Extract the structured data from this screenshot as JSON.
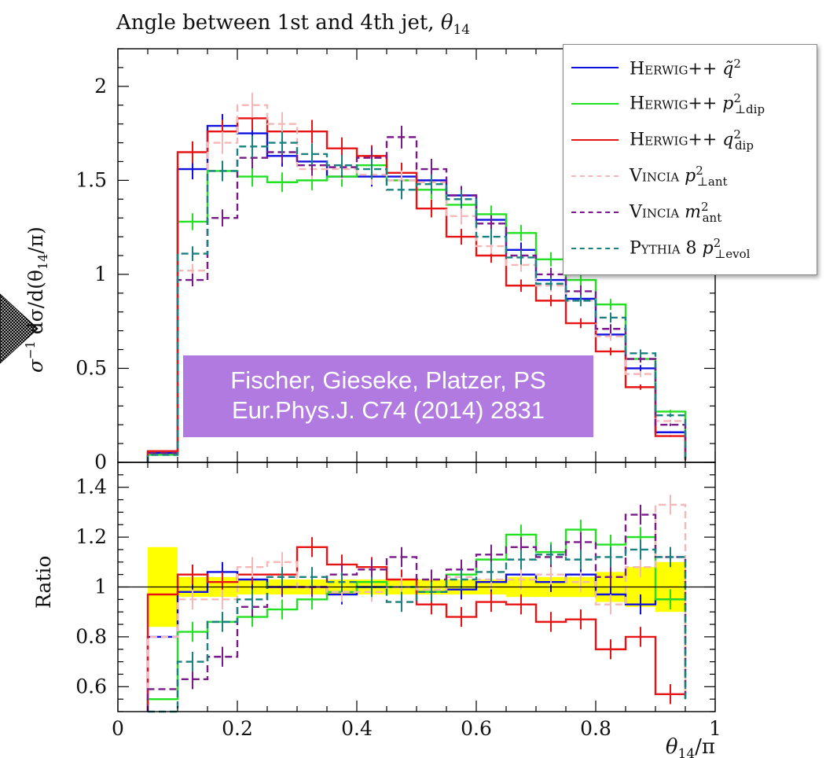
{
  "title": "Angle between 1st and 4th jet, θ14",
  "title_main": "Angle between 1st and 4th jet, ",
  "title_sym": "θ",
  "title_sub": "14",
  "citation": {
    "line1": "Fischer, Gieseke, Platzer, PS",
    "line2": "Eur.Phys.J. C74 (2014) 2831"
  },
  "colors": {
    "herwig_qtilde": "#1010e0",
    "herwig_pt_dip": "#22e022",
    "herwig_q_dip": "#e81414",
    "vincia_pt_ant": "#f5b8b8",
    "vincia_m_ant": "#7a1a8a",
    "pythia": "#1a8080",
    "uncert_band": "#ffff00",
    "citation_bg": "#b07ae0"
  },
  "legend": [
    {
      "gen": "Herwig++",
      "sym": "q̃",
      "sup": "2",
      "sub": "",
      "style": "solid",
      "color": "#1010e0"
    },
    {
      "gen": "Herwig++",
      "sym": "p",
      "sup": "2",
      "sub": "⊥dip",
      "style": "solid",
      "color": "#22e022"
    },
    {
      "gen": "Herwig++",
      "sym": "q",
      "sup": "2",
      "sub": "dip",
      "style": "solid",
      "color": "#e81414"
    },
    {
      "gen": "Vincia",
      "sym": "p",
      "sup": "2",
      "sub": "⊥ant",
      "style": "dashed",
      "color": "#f5b8b8"
    },
    {
      "gen": "Vincia",
      "sym": "m",
      "sup": "2",
      "sub": "ant",
      "style": "dashed",
      "color": "#7a1a8a"
    },
    {
      "gen": "Pythia 8",
      "sym": "p",
      "sup": "2",
      "sub": "⊥evol",
      "style": "dashed",
      "color": "#1a8080"
    }
  ],
  "chart_data": {
    "type": "line",
    "step": true,
    "title": "Angle between 1st and 4th jet, θ14",
    "xlabel": "θ14/π",
    "xlabel_main": "θ",
    "xlabel_sub": "14",
    "xlabel_tail": "/π",
    "ylabel_top": "σ⁻¹ dσ/d(θ14/π)",
    "ylabel_top_main": "σ",
    "ylabel_top_sup": "−1",
    "ylabel_top_mid": " dσ/d(θ",
    "ylabel_top_sub": "14",
    "ylabel_top_tail": "/π)",
    "ylabel_bottom": "Ratio",
    "xlim": [
      0,
      1
    ],
    "ylim_top": [
      0,
      2.2
    ],
    "ylim_bottom": [
      0.5,
      1.5
    ],
    "xticks": [
      0,
      0.2,
      0.4,
      0.6,
      0.8,
      1
    ],
    "xtick_labels": [
      "0",
      "0.2",
      "0.4",
      "0.6",
      "0.8",
      "1"
    ],
    "yticks_top": [
      0,
      0.5,
      1,
      1.5,
      2
    ],
    "ytick_labels_top": [
      "0",
      "0.5",
      "1",
      "1.5",
      "2"
    ],
    "yticks_bottom": [
      0.6,
      0.8,
      1,
      1.2,
      1.4
    ],
    "ytick_labels_bottom": [
      "0.6",
      "0.8",
      "1",
      "1.2",
      "1.4"
    ],
    "bin_edges": [
      0.05,
      0.1,
      0.15,
      0.2,
      0.25,
      0.3,
      0.35,
      0.4,
      0.45,
      0.5,
      0.55,
      0.6,
      0.65,
      0.7,
      0.75,
      0.8,
      0.85,
      0.9,
      0.95
    ],
    "legend_position": "top-right",
    "grid": false,
    "series": [
      {
        "name": "Herwig++ q̃²",
        "key": "herwig_qtilde",
        "style": "solid",
        "color": "#1010e0",
        "values": [
          0.05,
          1.56,
          1.79,
          1.75,
          1.63,
          1.6,
          1.52,
          1.52,
          1.52,
          1.5,
          1.42,
          1.29,
          1.13,
          0.97,
          0.87,
          0.68,
          0.5,
          0.16,
          0.02
        ],
        "ratio": [
          0.8,
          0.98,
          1.06,
          1.03,
          1.0,
          1.0,
          0.97,
          1.0,
          1.0,
          0.98,
          0.99,
          1.02,
          1.05,
          1.02,
          1.05,
          0.97,
          0.93,
          0.95,
          0.95
        ]
      },
      {
        "name": "Herwig++ p²⊥dip",
        "key": "herwig_pt_dip",
        "style": "solid",
        "color": "#22e022",
        "values": [
          0.04,
          1.28,
          1.55,
          1.52,
          1.49,
          1.5,
          1.52,
          1.58,
          1.5,
          1.45,
          1.37,
          1.32,
          1.22,
          1.08,
          0.97,
          0.84,
          0.55,
          0.27,
          0.02
        ],
        "ratio": [
          0.55,
          0.82,
          0.86,
          0.88,
          0.91,
          0.95,
          0.98,
          1.02,
          1.0,
          0.98,
          1.05,
          1.11,
          1.21,
          1.14,
          1.23,
          1.17,
          1.2,
          0.95,
          0.55
        ]
      },
      {
        "name": "Herwig++ q²dip",
        "key": "herwig_q_dip",
        "style": "solid",
        "color": "#e81414",
        "values": [
          0.06,
          1.65,
          1.76,
          1.83,
          1.76,
          1.76,
          1.67,
          1.63,
          1.54,
          1.35,
          1.2,
          1.1,
          0.94,
          0.86,
          0.74,
          0.59,
          0.4,
          0.14,
          0.01
        ],
        "ratio": [
          0.97,
          1.05,
          1.02,
          1.05,
          1.05,
          1.16,
          1.09,
          1.08,
          1.03,
          0.93,
          0.88,
          0.94,
          0.93,
          0.86,
          0.87,
          0.75,
          0.8,
          0.57,
          0.57
        ]
      },
      {
        "name": "Vincia p²⊥ant",
        "key": "vincia_pt_ant",
        "style": "dashed",
        "color": "#f5b8b8",
        "values": [
          0.04,
          1.02,
          1.7,
          1.9,
          1.8,
          1.56,
          1.56,
          1.53,
          1.5,
          1.49,
          1.31,
          1.15,
          1.05,
          0.94,
          0.86,
          0.67,
          0.47,
          0.22,
          0.02
        ],
        "ratio": [
          0.8,
          0.95,
          0.95,
          1.08,
          1.1,
          1.0,
          0.98,
          0.98,
          1.0,
          0.99,
          1.04,
          1.03,
          1.03,
          1.05,
          1.02,
          0.93,
          1.08,
          1.33,
          0.55
        ]
      },
      {
        "name": "Vincia m²ant",
        "key": "vincia_m_ant",
        "style": "dashed",
        "color": "#7a1a8a",
        "values": [
          0.05,
          0.97,
          1.3,
          1.62,
          1.65,
          1.58,
          1.57,
          1.62,
          1.73,
          1.56,
          1.42,
          1.27,
          1.1,
          1.0,
          0.91,
          0.71,
          0.55,
          0.2,
          0.02
        ],
        "ratio": [
          0.59,
          0.63,
          0.72,
          0.92,
          1.0,
          1.0,
          1.05,
          1.07,
          1.12,
          1.03,
          1.07,
          1.13,
          1.16,
          1.12,
          1.18,
          1.04,
          1.29,
          1.12,
          0.55
        ]
      },
      {
        "name": "Pythia 8 p²⊥evol",
        "key": "pythia",
        "style": "dashed",
        "color": "#1a8080",
        "values": [
          0.04,
          1.11,
          1.55,
          1.68,
          1.7,
          1.64,
          1.58,
          1.56,
          1.45,
          1.48,
          1.4,
          1.2,
          1.09,
          0.95,
          0.86,
          0.77,
          0.58,
          0.25,
          0.02
        ],
        "ratio": [
          0.5,
          0.7,
          0.86,
          0.95,
          1.04,
          1.04,
          1.02,
          1.0,
          0.94,
          0.98,
          1.03,
          1.06,
          1.11,
          1.13,
          1.11,
          1.12,
          1.15,
          1.12,
          0.55
        ]
      }
    ],
    "uncertainty_band": {
      "halfwidth": [
        0.16,
        0.04,
        0.04,
        0.03,
        0.03,
        0.03,
        0.03,
        0.03,
        0.03,
        0.03,
        0.03,
        0.03,
        0.04,
        0.04,
        0.04,
        0.06,
        0.08,
        0.1,
        0.28
      ]
    }
  }
}
